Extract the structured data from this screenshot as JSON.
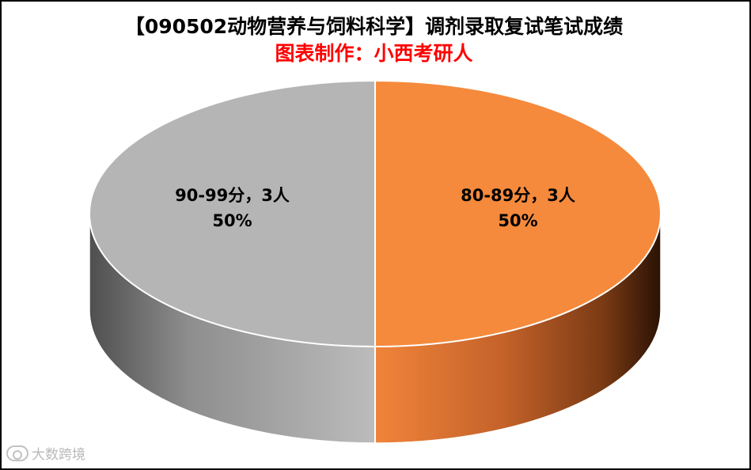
{
  "chart_data": {
    "type": "pie",
    "title": "【090502动物营养与饲料科学】调剂录取复试笔试成绩",
    "subtitle": "图表制作：小西考研人",
    "slices": [
      {
        "label": "80-89分，3人",
        "value": 3,
        "percent": "50%",
        "color": "#f58a3c"
      },
      {
        "label": "90-99分，3人",
        "value": 3,
        "percent": "50%",
        "color": "#b5b5b5"
      }
    ],
    "style": "3d"
  },
  "watermark": "大数跨境"
}
